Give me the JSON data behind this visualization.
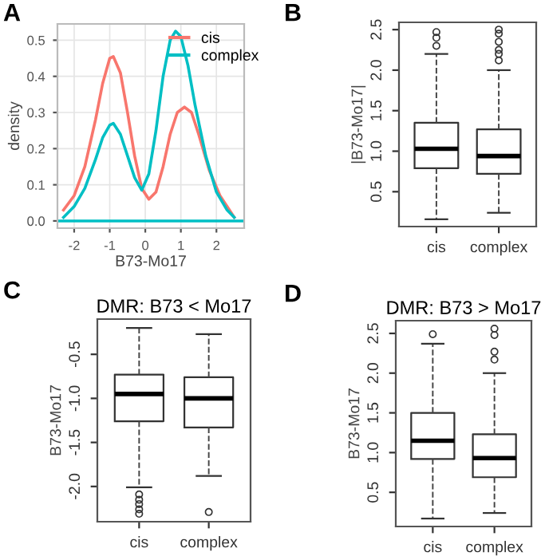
{
  "chart_data": [
    {
      "type": "line",
      "annotations": [
        "A"
      ],
      "xlabel": "B73-Mo17",
      "ylabel": "density",
      "xlim": [
        -2.47,
        2.78
      ],
      "ylim": [
        -0.02,
        0.545
      ],
      "xticks": [
        -2,
        -1,
        0,
        1,
        2
      ],
      "yticks": [
        {
          "value": 0,
          "label": "0.0"
        },
        0.1,
        0.2,
        0.3,
        0.4,
        0.5
      ],
      "grid": true,
      "legend": "top right",
      "series": [
        {
          "name": "cis",
          "color": "#f8766d",
          "x": [
            -2.3,
            -2.0,
            -1.7,
            -1.4,
            -1.2,
            -1.0,
            -0.9,
            -0.7,
            -0.5,
            -0.3,
            -0.1,
            0.1,
            0.3,
            0.5,
            0.7,
            0.9,
            1.1,
            1.3,
            1.5,
            1.8,
            2.1,
            2.3,
            2.5
          ],
          "values": [
            0.03,
            0.07,
            0.15,
            0.28,
            0.38,
            0.45,
            0.455,
            0.41,
            0.3,
            0.18,
            0.09,
            0.06,
            0.08,
            0.15,
            0.24,
            0.3,
            0.315,
            0.3,
            0.24,
            0.14,
            0.07,
            0.04,
            0.01
          ]
        },
        {
          "name": "complex",
          "color": "#00bfc4",
          "x": [
            -2.3,
            -2.0,
            -1.7,
            -1.4,
            -1.2,
            -1.0,
            -0.9,
            -0.7,
            -0.5,
            -0.3,
            -0.1,
            0.1,
            0.3,
            0.5,
            0.7,
            0.85,
            1.0,
            1.2,
            1.4,
            1.7,
            2.0,
            2.3,
            2.5
          ],
          "values": [
            0.01,
            0.04,
            0.09,
            0.17,
            0.23,
            0.265,
            0.27,
            0.24,
            0.18,
            0.12,
            0.085,
            0.13,
            0.25,
            0.4,
            0.5,
            0.525,
            0.51,
            0.43,
            0.32,
            0.18,
            0.08,
            0.03,
            0.01
          ]
        }
      ],
      "ref_lines": [
        {
          "axis": "y",
          "value": 0,
          "color": "#00bfc4"
        }
      ]
    },
    {
      "type": "box",
      "annotations": [
        "B"
      ],
      "ylabel": "|B73-Mo17|",
      "categories": [
        "cis",
        "complex"
      ],
      "ylim": [
        0.07,
        2.59
      ],
      "yticks": [
        0.5,
        {
          "value": 1,
          "label": "1.0"
        },
        1.5,
        {
          "value": 2,
          "label": "2.0"
        },
        2.5
      ],
      "boxes": [
        {
          "low": 0.16,
          "q1": 0.79,
          "median": 1.03,
          "q3": 1.35,
          "high": 2.2,
          "outliers": [
            2.3,
            2.4,
            2.47
          ]
        },
        {
          "low": 0.24,
          "q1": 0.72,
          "median": 0.94,
          "q3": 1.27,
          "high": 2.0,
          "outliers": [
            2.12,
            2.2,
            2.25,
            2.35,
            2.45,
            2.5
          ]
        }
      ]
    },
    {
      "type": "box",
      "annotations": [
        "C"
      ],
      "title": "DMR: B73 < Mo17",
      "ylabel": "B73-Mo17",
      "categories": [
        "cis",
        "complex"
      ],
      "ylim": [
        -2.4,
        -0.1
      ],
      "yticks": [
        {
          "value": -2,
          "label": "-2.0"
        },
        -1.5,
        {
          "value": -1,
          "label": "-1.0"
        },
        -0.5
      ],
      "boxes": [
        {
          "low": -2.01,
          "q1": -1.26,
          "median": -0.95,
          "q3": -0.73,
          "high": -0.2,
          "outliers": [
            -2.09,
            -2.15,
            -2.2,
            -2.26,
            -2.31
          ]
        },
        {
          "low": -1.88,
          "q1": -1.33,
          "median": -1.0,
          "q3": -0.76,
          "high": -0.27,
          "outliers": [
            -2.29
          ]
        }
      ]
    },
    {
      "type": "box",
      "annotations": [
        "D"
      ],
      "title": "DMR: B73 > Mo17",
      "ylabel": "B73-Mo17",
      "categories": [
        "cis",
        "complex"
      ],
      "ylim": [
        0.07,
        2.66
      ],
      "yticks": [
        0.5,
        {
          "value": 1,
          "label": "1.0"
        },
        1.5,
        {
          "value": 2,
          "label": "2.0"
        },
        2.5
      ],
      "boxes": [
        {
          "low": 0.17,
          "q1": 0.92,
          "median": 1.15,
          "q3": 1.5,
          "high": 2.37,
          "outliers": [
            2.49
          ]
        },
        {
          "low": 0.24,
          "q1": 0.69,
          "median": 0.93,
          "q3": 1.23,
          "high": 2.0,
          "outliers": [
            2.17,
            2.27,
            2.48,
            2.56
          ]
        }
      ]
    }
  ]
}
